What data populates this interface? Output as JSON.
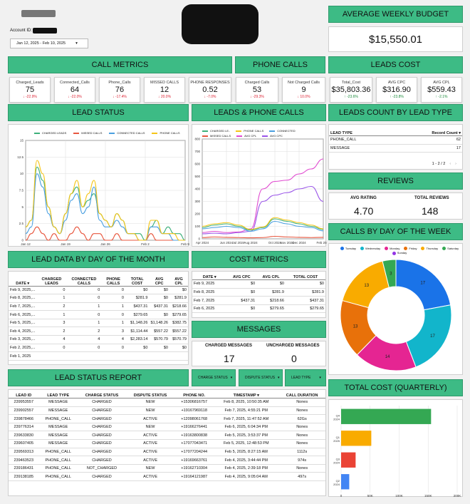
{
  "account": {
    "label": "Account ID:",
    "date_range": "Jan 12, 2025 - Feb 10, 2025"
  },
  "headers": {
    "avg_weekly_budget": "AVERAGE WEEKLY BUDGET",
    "call_metrics": "CALL METRICS",
    "phone_calls": "PHONE CALLS",
    "leads_cost": "LEADS COST",
    "lead_status": "LEAD STATUS",
    "leads_phone_calls": "LEADS & PHONE CALLS",
    "leads_count_by_type": "LEADS COUNT BY LEAD TYPE",
    "reviews": "REVIEWS",
    "lead_data_by_day": "LEAD DATA BY DAY OF THE MONTH",
    "cost_metrics": "COST METRICS",
    "calls_by_day": "CALLS BY DAY OF THE WEEK",
    "messages": "MESSAGES",
    "lead_status_report": "LEAD STATUS REPORT",
    "total_cost_quarterly": "TOTAL COST (QUARTERLY)"
  },
  "avg_weekly_budget_value": "$15,550.01",
  "call_metrics": [
    {
      "label": "Charged_Leads",
      "value": "75",
      "delta": "↓ -22.9%"
    },
    {
      "label": "Connected_Calls",
      "value": "64",
      "delta": "↓ -22.0%"
    },
    {
      "label": "Phone_Calls",
      "value": "76",
      "delta": "↓ -17.4%"
    },
    {
      "label": "MISSED CALLS",
      "value": "12",
      "delta": "↓ 20.0%"
    },
    {
      "label": "PHONE RESPONSES",
      "value": "0.52",
      "delta": "↓ -7.0%"
    }
  ],
  "phone_calls": [
    {
      "label": "Charged Calls",
      "value": "53",
      "delta": "↓ -29.3%"
    },
    {
      "label": "Not Charged Calls",
      "value": "9",
      "delta": "↓ 10.0%"
    }
  ],
  "leads_cost": [
    {
      "label": "Total_Cost",
      "value": "$35,803.36",
      "delta": "↑ -23.6%"
    },
    {
      "label": "AVG CPC",
      "value": "$316.90",
      "delta": "↑ -23.8%"
    },
    {
      "label": "AVG CPL",
      "value": "$559.43",
      "delta": "↑ -2.1%"
    }
  ],
  "lead_status_legend": [
    "CHARGED LEADS",
    "MISSED CALLS",
    "CONNECTED CALLS",
    "PHONE CALLS"
  ],
  "lead_status_colors": {
    "CHARGED LEADS": "#3db07a",
    "MISSED CALLS": "#e8573f",
    "CONNECTED CALLS": "#4a9fe0",
    "PHONE CALLS": "#f5c518"
  },
  "leads_phone_legend": [
    "CHARGED LE..",
    "PHONE CALLS",
    "CONNECTED",
    "MISSED CALLS",
    "AVG CPL",
    "AVG CPC"
  ],
  "leads_count_table": {
    "col1": "LEAD TYPE",
    "col2": "Record Count ▾",
    "rows": [
      [
        "PHONE_CALL",
        "62"
      ],
      [
        "MESSAGE",
        "17"
      ]
    ],
    "pager": "1 - 2 / 2"
  },
  "reviews": {
    "avg_label": "AVG RATING",
    "avg_value": "4.70",
    "total_label": "TOTAL REVIEWS",
    "total_value": "148"
  },
  "lead_data_table": {
    "headers": [
      "DATE ▾",
      "CHARGED LEADS",
      "CONNECTED CALLS",
      "PHONE CALLS",
      "TOTAL COST",
      "AVG CPC",
      "AVG CPL"
    ],
    "rows": [
      [
        "Feb 9, 2025,...",
        "0",
        "0",
        "0",
        "$0",
        "$0",
        "$0"
      ],
      [
        "Feb 8, 2025,...",
        "1",
        "0",
        "0",
        "$281.9",
        "$0",
        "$281.9"
      ],
      [
        "Feb 7, 2025,...",
        "2",
        "1",
        "1",
        "$437.31",
        "$437.31",
        "$218.66"
      ],
      [
        "Feb 6, 2025,...",
        "1",
        "0",
        "0",
        "$279.65",
        "$0",
        "$279.65"
      ],
      [
        "Feb 5, 2025,...",
        "3",
        "1",
        "1",
        "$1,148.26",
        "$1,148.26",
        "$382.75"
      ],
      [
        "Feb 4, 2025,...",
        "2",
        "2",
        "3",
        "$1,114.44",
        "$557.22",
        "$557.22"
      ],
      [
        "Feb 3, 2025,...",
        "4",
        "4",
        "4",
        "$2,283.14",
        "$570.79",
        "$570.79"
      ],
      [
        "Feb 2, 2025,...",
        "0",
        "0",
        "0",
        "$0",
        "$0",
        "$0"
      ],
      [
        "Feb 1, 2025",
        "",
        "",
        "",
        "",
        "",
        ""
      ]
    ]
  },
  "cost_metrics_table": {
    "headers": [
      "DATE ▾",
      "AVG CPC",
      "AVG CPL",
      "TOTAL COST"
    ],
    "rows": [
      [
        "Feb 9, 2025",
        "$0",
        "$0",
        "$0"
      ],
      [
        "Feb 8, 2025",
        "$0",
        "$281.9",
        "$281.9"
      ],
      [
        "Feb 7, 2025",
        "$437.31",
        "$218.66",
        "$437.31"
      ],
      [
        "Feb 6, 2025",
        "$0",
        "$279.65",
        "$279.65"
      ]
    ]
  },
  "messages": {
    "charged_label": "CHARGED MESSAGES",
    "charged_value": "17",
    "uncharged_label": "UNCHARGED MESSAGES",
    "uncharged_value": "0"
  },
  "filters": [
    "CHARGE STATUS",
    "DISPUTE STATUS",
    "LEAD TYPE"
  ],
  "lead_report": {
    "headers": [
      "LEAD ID",
      "LEAD TYPE",
      "CHARGE STATUS",
      "DISPUTE STATUS",
      "PHONE NO.",
      "TIMESTAMP ▾",
      "CALL DURATION"
    ],
    "rows": [
      [
        "239953557",
        "MESSAGE",
        "CHARGED",
        "NEW",
        "+15306816757",
        "Feb 8, 2025, 10:50:35 AM",
        "Nones"
      ],
      [
        "239902557",
        "MESSAGE",
        "CHARGED",
        "NEW",
        "+19167969118",
        "Feb 7, 2025, 4:55:21 PM",
        "Nones"
      ],
      [
        "239878466",
        "PHONE_CALL",
        "CHARGED",
        "ACTIVE",
        "+12098061768",
        "Feb 7, 2025, 11:47:52 AM",
        "62Gs"
      ],
      [
        "239776314",
        "MESSAGE",
        "CHARGED",
        "NEW",
        "+19166276441",
        "Feb 6, 2025, 6:04:34 PM",
        "Nones"
      ],
      [
        "239633830",
        "MESSAGE",
        "CHARGED",
        "ACTIVE",
        "+19163800838",
        "Feb 5, 2025, 3:53:37 PM",
        "Nones"
      ],
      [
        "239607405",
        "MESSAGE",
        "CHARGED",
        "ACTIVE",
        "+17077043471",
        "Feb 5, 2025, 12:48:53 PM",
        "Nones"
      ],
      [
        "239569313",
        "PHONE_CALL",
        "CHARGED",
        "ACTIVE",
        "+17077204244",
        "Feb 5, 2025, 8:27:15 AM",
        "1112s"
      ],
      [
        "239463523",
        "PHONE_CALL",
        "CHARGED",
        "ACTIVE",
        "+19169663761",
        "Feb 4, 2025, 3:44:44 PM",
        "974s"
      ],
      [
        "239186431",
        "PHONE_CALL",
        "NOT_CHARGED",
        "NEW",
        "+19162710304",
        "Feb 4, 2025, 2:39:18 PM",
        "Nones"
      ],
      [
        "239138185",
        "PHONE_CALL",
        "CHARGED",
        "ACTIVE",
        "+19164121987",
        "Feb 4, 2025, 9:05:04 AM",
        "497s"
      ]
    ]
  },
  "chart_data": [
    {
      "type": "line",
      "x": [
        "Jan 12",
        "Jan 13",
        "Jan 14",
        "Jan 15",
        "Jan 16",
        "Jan 17",
        "Jan 18",
        "Jan 19",
        "Jan 20",
        "Jan 21",
        "Jan 22",
        "Jan 23",
        "Jan 24",
        "Jan 25",
        "Jan 26",
        "Jan 27",
        "Jan 28",
        "Jan 29",
        "Jan 30",
        "Jan 31",
        "Feb 1",
        "Feb 2",
        "Feb 3",
        "Feb 4",
        "Feb 5",
        "Feb 6",
        "Feb 7",
        "Feb 8",
        "Feb 9"
      ],
      "xticks": [
        "Jan 12",
        "Jan 19",
        "Jan 26",
        "Feb 2",
        "Feb 9"
      ],
      "ylim": [
        0,
        15
      ],
      "yticks": [
        "0",
        "2.5",
        "5",
        "7.5",
        "10",
        "12.5",
        "15"
      ],
      "series": [
        {
          "name": "CHARGED LEADS",
          "values": [
            2,
            3,
            11,
            9,
            5,
            2,
            1,
            4,
            7,
            8,
            5,
            6,
            7,
            4,
            3,
            2,
            4,
            3,
            1,
            1,
            1,
            0,
            2,
            3,
            1,
            2,
            1,
            1,
            0
          ]
        },
        {
          "name": "MISSED CALLS",
          "values": [
            0,
            1,
            2,
            1,
            0,
            1,
            0,
            0,
            1,
            2,
            1,
            0,
            1,
            1,
            0,
            0,
            1,
            0,
            0,
            0,
            0,
            0,
            1,
            0,
            0,
            0,
            0,
            0,
            0
          ]
        },
        {
          "name": "CONNECTED CALLS",
          "values": [
            1,
            2,
            10,
            8,
            4,
            2,
            1,
            3,
            6,
            7,
            4,
            5,
            8,
            3,
            2,
            2,
            3,
            2,
            1,
            1,
            0,
            0,
            2,
            2,
            1,
            1,
            0,
            0,
            0
          ]
        },
        {
          "name": "PHONE CALLS",
          "values": [
            2,
            3,
            12,
            10,
            5,
            2,
            1,
            4,
            7,
            9,
            5,
            7,
            9,
            4,
            3,
            2,
            4,
            3,
            1,
            1,
            0,
            0,
            3,
            3,
            1,
            1,
            1,
            0,
            0
          ]
        }
      ]
    },
    {
      "type": "line",
      "x": [
        "Apr 2024",
        "May 2024",
        "Jun 2024",
        "Jul 2024",
        "Aug 2024",
        "Sep 2024",
        "Oct 2024",
        "Nov 2024",
        "Dec 2024",
        "Jan 2025",
        "Feb 2025"
      ],
      "xticks": [
        "Apr 2024",
        "Jun 2024",
        "Jul 2024",
        "Aug 2024",
        "Oct 2024",
        "Nov 2024",
        "Dec 2024",
        "Feb 2025"
      ],
      "ylim": [
        0,
        800
      ],
      "yticks": [
        "0",
        "100",
        "200",
        "300",
        "400",
        "500",
        "600",
        "700",
        "800"
      ],
      "series": [
        {
          "name": "AVG CPL",
          "values": [
            50,
            60,
            50,
            55,
            80,
            400,
            460,
            470,
            520,
            560,
            640
          ]
        },
        {
          "name": "AVG CPC",
          "values": [
            40,
            45,
            40,
            50,
            60,
            300,
            350,
            370,
            400,
            420,
            300
          ]
        },
        {
          "name": "CHARGED LE..",
          "values": [
            90,
            110,
            120,
            100,
            70,
            90,
            160,
            140,
            120,
            100,
            75
          ]
        },
        {
          "name": "PHONE CALLS",
          "values": [
            100,
            120,
            130,
            110,
            75,
            95,
            170,
            150,
            130,
            110,
            80
          ]
        },
        {
          "name": "CONNECTED",
          "values": [
            80,
            90,
            100,
            90,
            60,
            80,
            140,
            120,
            100,
            90,
            64
          ]
        },
        {
          "name": "MISSED CALLS",
          "values": [
            10,
            15,
            12,
            10,
            8,
            10,
            20,
            15,
            12,
            10,
            12
          ]
        }
      ]
    },
    {
      "type": "pie",
      "labels": [
        "Tuesday",
        "Wednesday",
        "Monday",
        "Friday",
        "Thursday",
        "Saturday",
        "Sunday"
      ],
      "values": [
        17,
        17,
        14,
        13,
        13,
        3,
        0
      ],
      "data_labels": [
        "17",
        "17",
        "14",
        "13",
        "13",
        "3",
        ""
      ]
    },
    {
      "type": "bar",
      "orientation": "horizontal",
      "categories": [
        "Q4 2024",
        "Q1 2025",
        "Q3 2024",
        "Q2 2024"
      ],
      "values": [
        155000,
        52000,
        25000,
        14000
      ],
      "xticks": [
        "0",
        "50K",
        "100K",
        "150K",
        "200K"
      ],
      "xlim": [
        0,
        200000
      ]
    }
  ],
  "colors": {
    "header": "#3dbb85",
    "tuesday": "#1a73e8",
    "wednesday": "#12b5cb",
    "monday": "#e52592",
    "friday": "#e8710a",
    "thursday": "#f9ab00",
    "saturday": "#34a853",
    "sunday": "#9334e6"
  }
}
